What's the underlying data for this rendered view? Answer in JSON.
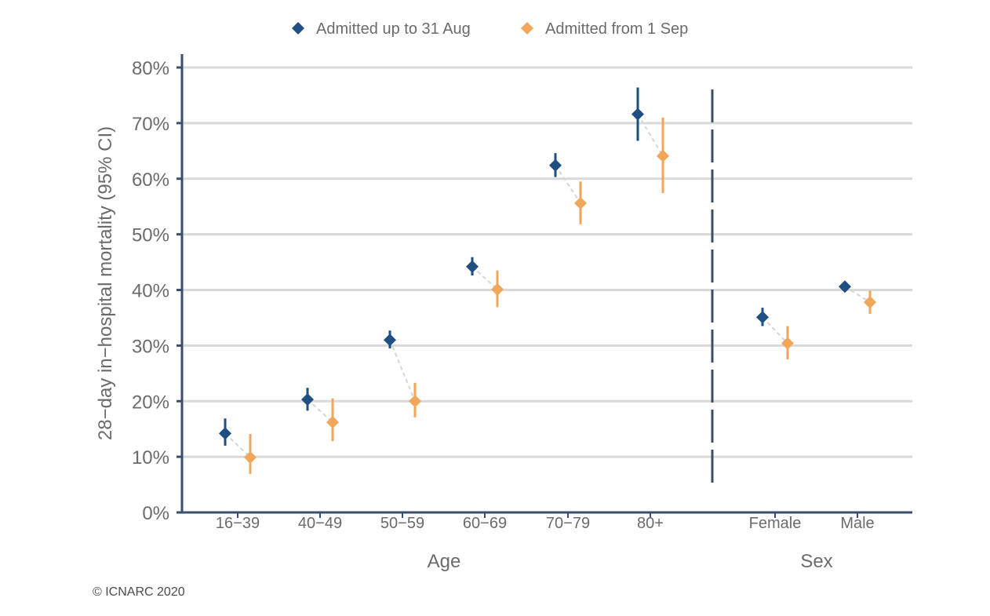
{
  "chart_data": {
    "type": "scatter",
    "ylabel": "28−day in−hospital mortality (95% CI)",
    "ylim": [
      0,
      80
    ],
    "yticks": [
      "0%",
      "10%",
      "20%",
      "30%",
      "40%",
      "50%",
      "60%",
      "70%",
      "80%"
    ],
    "grid": true,
    "legend_position": "top-center",
    "groups": [
      {
        "label": "Age",
        "categories": [
          "16−39",
          "40−49",
          "50−59",
          "60−69",
          "70−79",
          "80+"
        ]
      },
      {
        "label": "Sex",
        "categories": [
          "Female",
          "Male"
        ]
      }
    ],
    "series": [
      {
        "name": "Admitted up to 31 Aug",
        "color": "#1f4e82",
        "values": [
          14.2,
          20.3,
          31.0,
          44.2,
          62.4,
          71.6,
          35.1,
          40.6
        ],
        "ci_low": [
          12.0,
          18.3,
          29.5,
          42.6,
          60.3,
          66.8,
          33.5,
          39.8
        ],
        "ci_high": [
          16.9,
          22.4,
          32.7,
          45.9,
          64.6,
          76.4,
          36.8,
          41.4
        ]
      },
      {
        "name": "Admitted from 1 Sep",
        "color": "#f2a65a",
        "values": [
          9.9,
          16.2,
          20.0,
          40.1,
          55.6,
          64.1,
          30.4,
          37.8
        ],
        "ci_low": [
          6.9,
          12.8,
          17.1,
          36.9,
          51.8,
          57.4,
          27.5,
          35.7
        ],
        "ci_high": [
          14.1,
          20.5,
          23.3,
          43.5,
          59.5,
          71.0,
          33.5,
          39.9
        ]
      }
    ],
    "connector_color": "#d6d6d6",
    "axis_color": "#3b4d6e"
  },
  "footer": {
    "copyright": "© ICNARC 2020"
  }
}
